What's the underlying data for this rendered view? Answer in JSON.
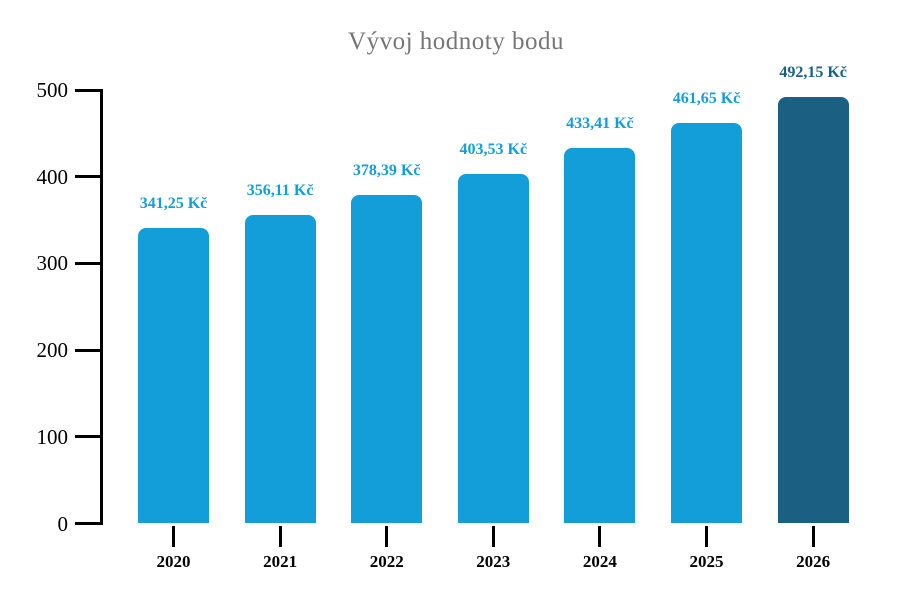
{
  "chart_data": {
    "type": "bar",
    "title": "Vývoj hodnoty bodu",
    "categories": [
      "2020",
      "2021",
      "2022",
      "2023",
      "2024",
      "2025",
      "2026"
    ],
    "values": [
      341.25,
      356.11,
      378.39,
      403.53,
      433.41,
      461.65,
      492.15
    ],
    "value_labels": [
      "341,25 Kč",
      "356,11 Kč",
      "378,39 Kč",
      "403,53 Kč",
      "433,41 Kč",
      "461,65 Kč",
      "492,15 Kč"
    ],
    "xlabel": "",
    "ylabel": "",
    "ylim": [
      0,
      500
    ],
    "y_ticks": [
      0,
      100,
      200,
      300,
      400,
      500
    ],
    "grid": false,
    "legend_position": "none",
    "highlight_index": 6,
    "colors": {
      "bar_default": "#139DD9",
      "bar_highlight": "#1B5F82",
      "label_default": "#139DD9",
      "label_highlight": "#1B5F82",
      "title": "#767676",
      "axis": "#000000",
      "tick_text": "#000000",
      "background": "#FFFFFF"
    }
  }
}
